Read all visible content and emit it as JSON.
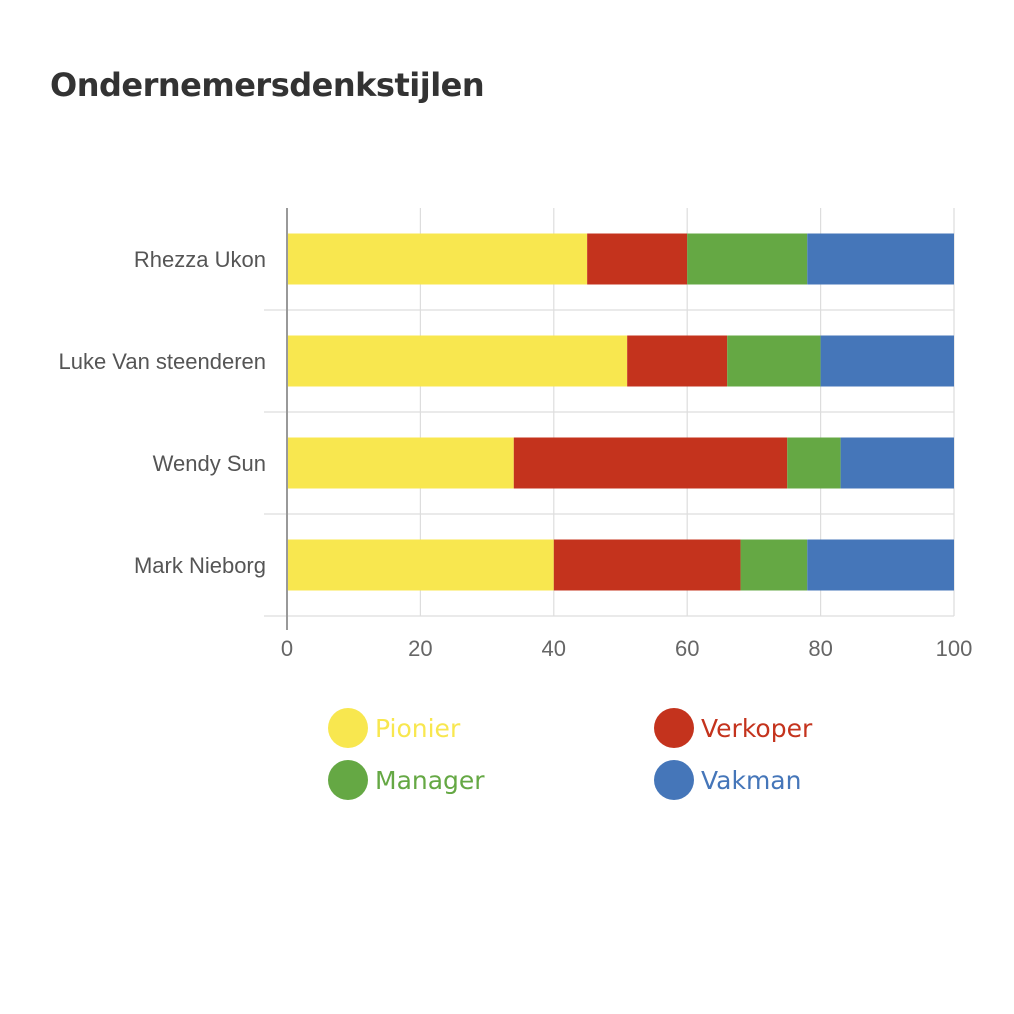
{
  "chart_data": {
    "type": "bar",
    "orientation": "horizontal",
    "stacked": true,
    "title": "Ondernemersdenkstijlen",
    "categories": [
      "Rhezza Ukon",
      "Luke Van steenderen",
      "Wendy Sun",
      "Mark Nieborg"
    ],
    "xlim": [
      0,
      100
    ],
    "xticks": [
      0,
      20,
      40,
      60,
      80,
      100
    ],
    "grid": true,
    "legend_position": "bottom",
    "series": [
      {
        "name": "Pionier",
        "color": "#F8E74F",
        "values": [
          45,
          51,
          34,
          40
        ]
      },
      {
        "name": "Verkoper",
        "color": "#C4331D",
        "values": [
          15,
          15,
          41,
          28
        ]
      },
      {
        "name": "Manager",
        "color": "#65A844",
        "values": [
          18,
          14,
          8,
          10
        ]
      },
      {
        "name": "Vakman",
        "color": "#4576B9",
        "values": [
          22,
          20,
          17,
          22
        ]
      }
    ]
  }
}
